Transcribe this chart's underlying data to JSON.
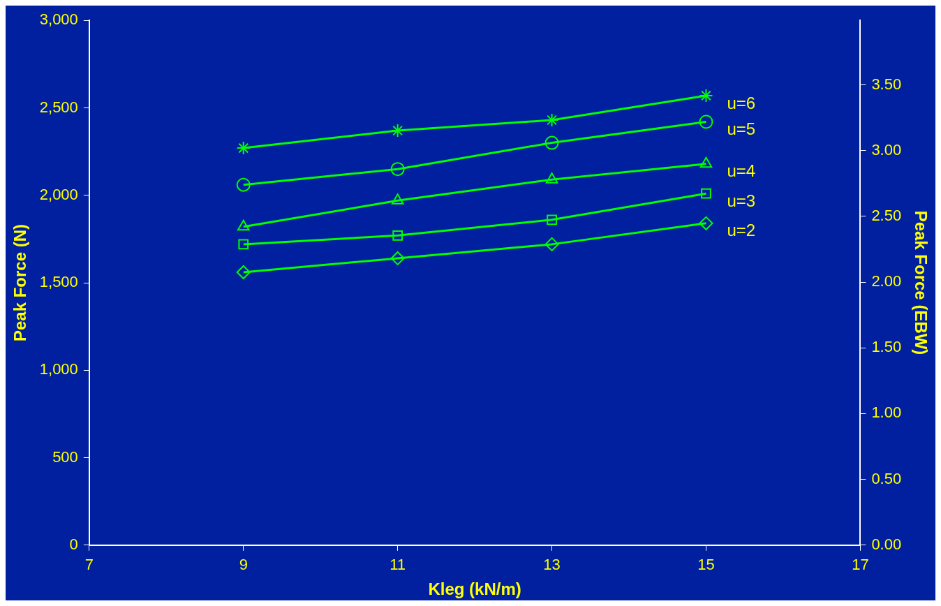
{
  "chart_data": {
    "type": "line",
    "xlabel": "Kleg (kN/m)",
    "ylabel": "Peak Force (N)",
    "y2label": "Peak Force (EBW)",
    "x": [
      9,
      11,
      13,
      15
    ],
    "series": [
      {
        "name": "u=6",
        "color": "#00ff00",
        "marker": "cross",
        "values": [
          2270,
          2370,
          2430,
          2570
        ]
      },
      {
        "name": "u=5",
        "color": "#00ff00",
        "marker": "circle",
        "values": [
          2060,
          2150,
          2300,
          2420
        ]
      },
      {
        "name": "u=4",
        "color": "#00ff00",
        "marker": "triangle",
        "values": [
          1820,
          1970,
          2090,
          2180
        ]
      },
      {
        "name": "u=3",
        "color": "#00ff00",
        "marker": "square",
        "values": [
          1720,
          1770,
          1860,
          2010
        ]
      },
      {
        "name": "u=2",
        "color": "#00ff00",
        "marker": "diamond",
        "values": [
          1560,
          1640,
          1720,
          1840
        ]
      }
    ],
    "xlim": [
      7,
      17
    ],
    "xticks": [
      7,
      9,
      11,
      13,
      15,
      17
    ],
    "ylim": [
      0,
      3000
    ],
    "yticks": [
      0,
      {
        "value": 500,
        "label": "500"
      },
      {
        "value": 1000,
        "label": "1,000"
      },
      {
        "value": 1500,
        "label": "1,500"
      },
      {
        "value": 2000,
        "label": "2,000"
      },
      {
        "value": 2500,
        "label": "2,500"
      },
      {
        "value": 3000,
        "label": "3,000"
      }
    ],
    "y2lim": [
      0,
      3.99
    ],
    "y2ticks": [
      {
        "value": 0,
        "label": "0.00"
      },
      {
        "value": 0.5,
        "label": "0.50"
      },
      {
        "value": 1,
        "label": "1.00"
      },
      {
        "value": 1.5,
        "label": "1.50"
      },
      {
        "value": 2,
        "label": "2.00"
      },
      {
        "value": 2.5,
        "label": "2.50"
      },
      {
        "value": 3,
        "label": "3.00"
      },
      {
        "value": 3.5,
        "label": "3.50"
      }
    ],
    "grid": false,
    "legend": false,
    "line_style": "solid"
  }
}
